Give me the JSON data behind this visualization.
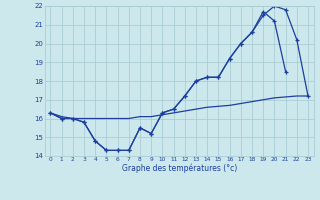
{
  "hours": [
    0,
    1,
    2,
    3,
    4,
    5,
    6,
    7,
    8,
    9,
    10,
    11,
    12,
    13,
    14,
    15,
    16,
    17,
    18,
    19,
    20,
    21,
    22,
    23
  ],
  "temp_curve1": [
    16.3,
    16.0,
    16.0,
    15.8,
    14.8,
    14.3,
    14.3,
    14.3,
    15.5,
    15.2,
    16.3,
    16.5,
    17.2,
    18.0,
    18.2,
    18.2,
    19.2,
    20.0,
    20.6,
    21.7,
    21.2,
    18.5,
    null,
    null
  ],
  "temp_curve2": [
    16.3,
    16.0,
    16.0,
    15.8,
    14.8,
    14.3,
    14.3,
    14.3,
    15.5,
    15.2,
    16.3,
    16.5,
    17.2,
    18.0,
    18.2,
    18.2,
    19.2,
    20.0,
    20.6,
    21.5,
    22.0,
    21.8,
    20.2,
    17.2
  ],
  "temp_linear": [
    16.3,
    16.1,
    16.0,
    16.0,
    16.0,
    16.0,
    16.0,
    16.0,
    16.1,
    16.1,
    16.2,
    16.3,
    16.4,
    16.5,
    16.6,
    16.65,
    16.7,
    16.8,
    16.9,
    17.0,
    17.1,
    17.15,
    17.2,
    17.2
  ],
  "xlim": [
    -0.5,
    23.5
  ],
  "ylim": [
    14,
    22
  ],
  "yticks": [
    14,
    15,
    16,
    17,
    18,
    19,
    20,
    21,
    22
  ],
  "xticks": [
    0,
    1,
    2,
    3,
    4,
    5,
    6,
    7,
    8,
    9,
    10,
    11,
    12,
    13,
    14,
    15,
    16,
    17,
    18,
    19,
    20,
    21,
    22,
    23
  ],
  "xlabel": "Graphe des températures (°c)",
  "line_color": "#1c3fa0",
  "bg_color": "#cce8ec",
  "grid_color": "#aacdd4",
  "title_color": "#1c3fa0"
}
